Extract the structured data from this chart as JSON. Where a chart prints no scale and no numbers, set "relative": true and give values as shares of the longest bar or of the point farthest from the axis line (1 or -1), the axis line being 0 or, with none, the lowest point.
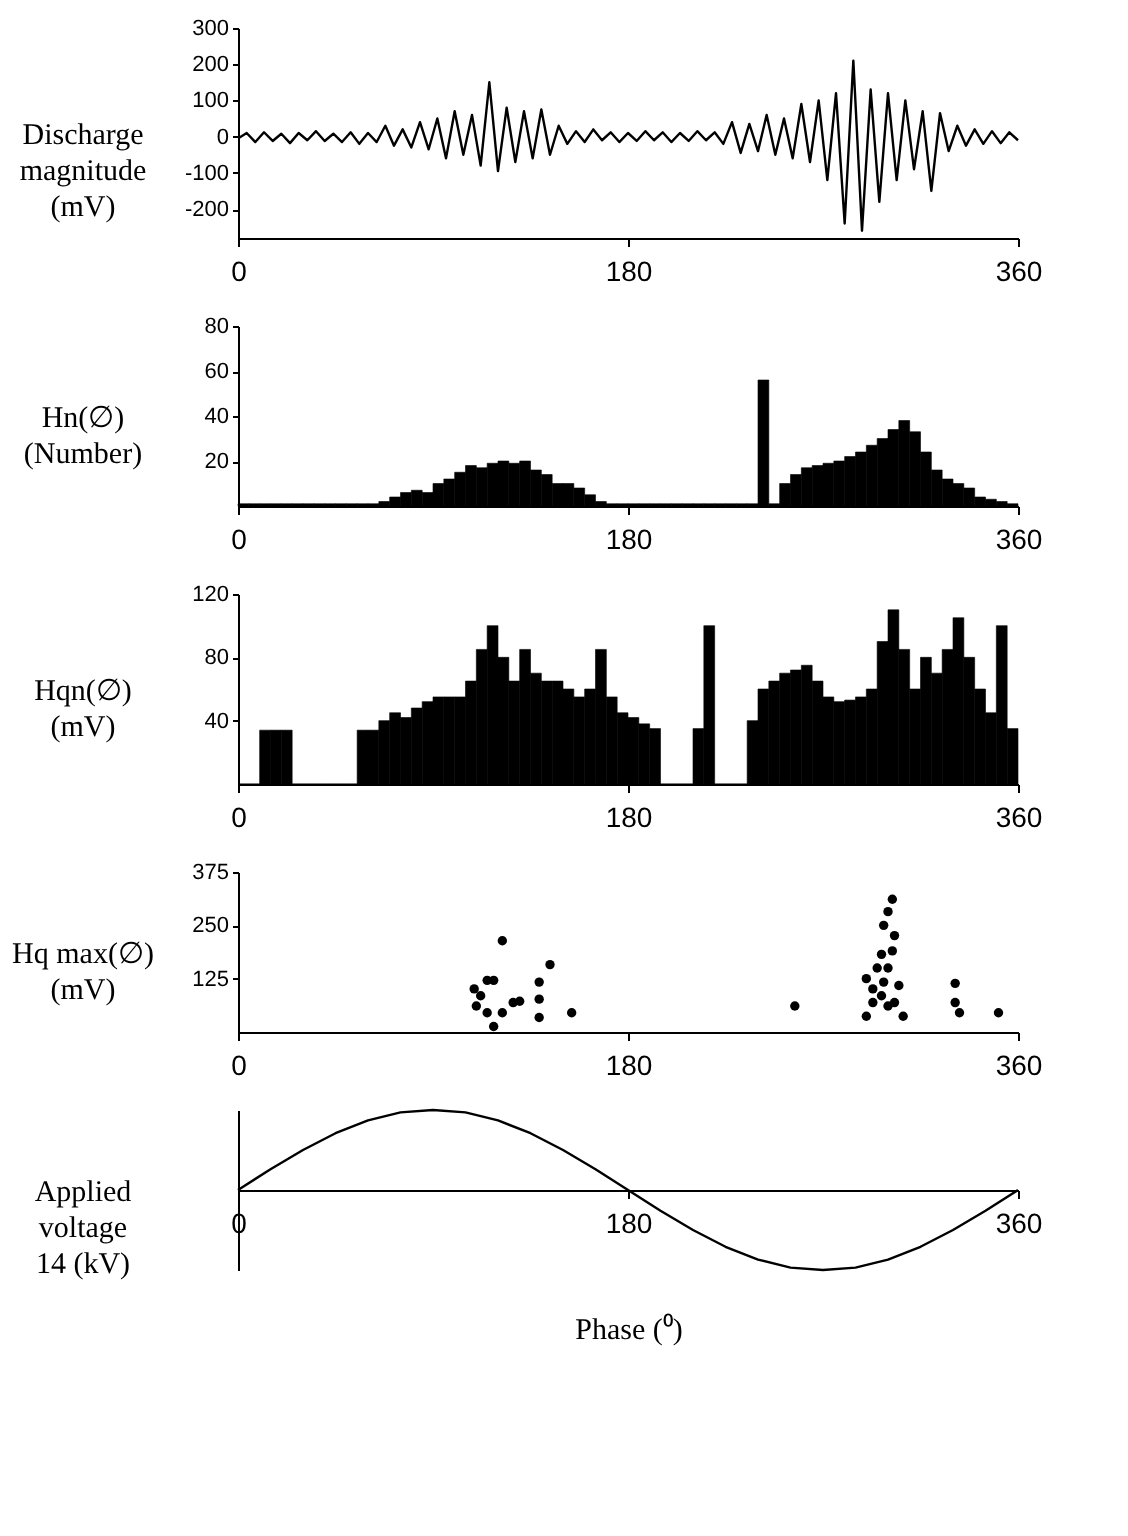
{
  "chart_data": [
    {
      "type": "line",
      "ylabel": "Discharge\nmagnitude\n(mV)",
      "xlim": [
        0,
        360
      ],
      "xticks": [
        0,
        180,
        360
      ],
      "ylim": [
        -280,
        300
      ],
      "yticks": [
        -200,
        -100,
        0,
        100,
        200,
        300
      ],
      "color": "#000000",
      "marker": "none",
      "line_style": "solid",
      "x": [
        0,
        4,
        8,
        12,
        16,
        20,
        24,
        28,
        32,
        36,
        40,
        44,
        48,
        52,
        56,
        60,
        64,
        68,
        72,
        76,
        80,
        84,
        88,
        92,
        96,
        100,
        104,
        108,
        112,
        116,
        120,
        124,
        128,
        132,
        136,
        140,
        144,
        148,
        152,
        156,
        160,
        164,
        168,
        172,
        176,
        180,
        184,
        188,
        192,
        196,
        200,
        204,
        208,
        212,
        216,
        220,
        224,
        228,
        232,
        236,
        240,
        244,
        248,
        252,
        256,
        260,
        264,
        268,
        272,
        276,
        280,
        284,
        288,
        292,
        296,
        300,
        304,
        308,
        312,
        316,
        320,
        324,
        328,
        332,
        336,
        340,
        344,
        348,
        352,
        356,
        360
      ],
      "values": [
        -5,
        10,
        -15,
        12,
        -12,
        8,
        -18,
        10,
        -10,
        15,
        -12,
        8,
        -15,
        12,
        -20,
        10,
        -15,
        30,
        -25,
        20,
        -30,
        40,
        -35,
        50,
        -60,
        70,
        -50,
        60,
        -80,
        150,
        -95,
        80,
        -70,
        70,
        -60,
        75,
        -50,
        30,
        -20,
        15,
        -15,
        20,
        -10,
        12,
        -15,
        10,
        -12,
        15,
        -10,
        12,
        -15,
        10,
        -12,
        15,
        -10,
        12,
        -20,
        40,
        -45,
        35,
        -40,
        60,
        -50,
        50,
        -60,
        90,
        -70,
        100,
        -120,
        120,
        -240,
        210,
        -260,
        130,
        -180,
        120,
        -120,
        100,
        -90,
        70,
        -150,
        65,
        -40,
        30,
        -25,
        20,
        -20,
        15,
        -18,
        12,
        -10
      ]
    },
    {
      "type": "histogram",
      "ylabel": "Hn(∅)\n(Number)",
      "xlim": [
        0,
        360
      ],
      "xticks": [
        0,
        180,
        360
      ],
      "ylim": [
        0,
        80
      ],
      "yticks": [
        20,
        40,
        60,
        80
      ],
      "color": "#000000",
      "bins": [
        0,
        5,
        10,
        15,
        20,
        25,
        30,
        35,
        40,
        45,
        50,
        55,
        60,
        65,
        70,
        75,
        80,
        85,
        90,
        95,
        100,
        105,
        110,
        115,
        120,
        125,
        130,
        135,
        140,
        145,
        150,
        155,
        160,
        165,
        170,
        175,
        180,
        185,
        190,
        195,
        200,
        205,
        210,
        215,
        220,
        225,
        230,
        235,
        240,
        245,
        250,
        255,
        260,
        265,
        270,
        275,
        280,
        285,
        290,
        295,
        300,
        305,
        310,
        315,
        320,
        325,
        330,
        335,
        340,
        345,
        350,
        355,
        360
      ],
      "values": [
        1,
        1,
        1,
        1,
        1,
        1,
        1,
        1,
        1,
        1,
        1,
        1,
        1,
        2,
        4,
        6,
        7,
        6,
        10,
        12,
        15,
        18,
        17,
        19,
        20,
        19,
        20,
        16,
        14,
        10,
        10,
        8,
        5,
        2,
        1,
        1,
        1,
        1,
        1,
        1,
        1,
        1,
        1,
        1,
        1,
        1,
        1,
        1,
        56,
        1,
        10,
        14,
        17,
        18,
        19,
        20,
        22,
        24,
        27,
        30,
        34,
        38,
        33,
        24,
        16,
        12,
        10,
        8,
        4,
        3,
        2,
        1
      ]
    },
    {
      "type": "histogram",
      "ylabel": "Hqn(∅)\n(mV)",
      "xlim": [
        0,
        360
      ],
      "xticks": [
        0,
        180,
        360
      ],
      "ylim": [
        0,
        120
      ],
      "yticks": [
        40,
        80,
        120
      ],
      "color": "#000000",
      "bins": [
        0,
        5,
        10,
        15,
        20,
        25,
        30,
        35,
        40,
        45,
        50,
        55,
        60,
        65,
        70,
        75,
        80,
        85,
        90,
        95,
        100,
        105,
        110,
        115,
        120,
        125,
        130,
        135,
        140,
        145,
        150,
        155,
        160,
        165,
        170,
        175,
        180,
        185,
        190,
        195,
        200,
        205,
        210,
        215,
        220,
        225,
        230,
        235,
        240,
        245,
        250,
        255,
        260,
        265,
        270,
        275,
        280,
        285,
        290,
        295,
        300,
        305,
        310,
        315,
        320,
        325,
        330,
        335,
        340,
        345,
        350,
        355,
        360
      ],
      "values": [
        0,
        0,
        34,
        34,
        34,
        0,
        0,
        0,
        0,
        0,
        0,
        34,
        34,
        40,
        45,
        42,
        48,
        52,
        55,
        55,
        55,
        65,
        85,
        100,
        80,
        65,
        85,
        70,
        65,
        65,
        60,
        55,
        60,
        85,
        55,
        45,
        42,
        38,
        35,
        0,
        0,
        0,
        35,
        100,
        0,
        0,
        0,
        40,
        60,
        65,
        70,
        72,
        75,
        65,
        55,
        52,
        53,
        55,
        60,
        90,
        110,
        85,
        60,
        80,
        70,
        85,
        105,
        80,
        60,
        45,
        100,
        35
      ]
    },
    {
      "type": "scatter",
      "ylabel": "Hq max(∅)\n(mV)",
      "xlim": [
        0,
        360
      ],
      "xticks": [
        0,
        180,
        360
      ],
      "ylim": [
        0,
        375
      ],
      "yticks": [
        125,
        250,
        375
      ],
      "color": "#000000",
      "marker": "circle",
      "x": [
        122,
        109,
        112,
        115,
        118,
        110,
        115,
        118,
        122,
        127,
        130,
        139,
        139,
        139,
        144,
        154,
        257,
        302,
        300,
        298,
        303,
        297,
        300,
        290,
        293,
        297,
        300,
        305,
        307,
        290,
        295,
        302,
        298,
        303,
        293,
        331,
        331,
        333,
        351
      ],
      "values": [
        214,
        101,
        85,
        121,
        121,
        61,
        45,
        13,
        45,
        69,
        72,
        117,
        77,
        34,
        158,
        45,
        61,
        311,
        282,
        250,
        226,
        182,
        150,
        125,
        101,
        85,
        61,
        109,
        37,
        37,
        150,
        190,
        117,
        69,
        69,
        114,
        69,
        45,
        45
      ]
    },
    {
      "type": "line",
      "relative": true,
      "ylabel": "Applied\nvoltage\n14 (kV)",
      "xlabel": "Phase (⁰)",
      "xlim": [
        0,
        360
      ],
      "xticks": [
        0,
        180,
        360
      ],
      "color": "#000000",
      "marker": "none",
      "line_style": "solid",
      "x": [
        0,
        15,
        30,
        45,
        60,
        75,
        90,
        105,
        120,
        135,
        150,
        165,
        180,
        195,
        210,
        225,
        240,
        255,
        270,
        285,
        300,
        315,
        330,
        345,
        360
      ],
      "values": [
        0,
        0.26,
        0.5,
        0.71,
        0.87,
        0.97,
        1,
        0.97,
        0.87,
        0.71,
        0.5,
        0.26,
        0,
        -0.26,
        -0.5,
        -0.71,
        -0.87,
        -0.97,
        -1,
        -0.97,
        -0.87,
        -0.71,
        -0.5,
        -0.26,
        0
      ]
    }
  ]
}
